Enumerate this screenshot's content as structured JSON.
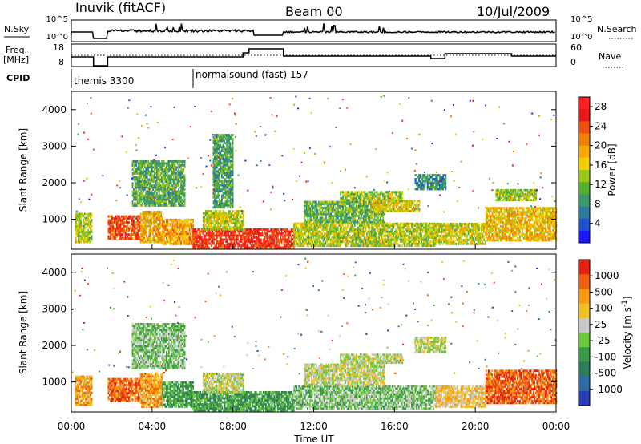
{
  "header": {
    "station": "Inuvik (fitACF)",
    "beam": "Beam 00",
    "date": "10/Jul/2009"
  },
  "noise_panel": {
    "left_label": "N.Sky",
    "right_label": "N.Search",
    "left_ticks": [
      "10^5",
      "10^0"
    ],
    "right_ticks": [
      "10^5",
      "10^0"
    ]
  },
  "freq_panel": {
    "left_label_1": "Freq.",
    "left_label_2": "[MHz]",
    "right_label": "Nave",
    "left_ticks": [
      "18",
      "8"
    ],
    "right_ticks": [
      "60",
      "0"
    ]
  },
  "cpid_panel": {
    "label": "CPID",
    "programs": [
      "themis 3300",
      "normalsound (fast) 157"
    ]
  },
  "x_axis": {
    "label": "Time UT",
    "ticks": [
      "00:00",
      "04:00",
      "08:00",
      "12:00",
      "16:00",
      "20:00",
      "00:00"
    ]
  },
  "chart_data": [
    {
      "type": "heatmap",
      "name": "power",
      "x_unit": "hours UT",
      "xlim": [
        0,
        24
      ],
      "ylabel": "Slant Range [km]",
      "ylim": [
        180,
        4500
      ],
      "yticks": [
        1000,
        2000,
        3000,
        4000
      ],
      "colorbar_label": "Power [dB]",
      "colorbar_ticks": [
        4,
        8,
        12,
        16,
        20,
        24,
        28
      ],
      "colorbar_range": [
        0,
        30
      ],
      "colors": [
        "#1a1aff",
        "#2050d0",
        "#2e7a9a",
        "#3a9a6a",
        "#55b030",
        "#9ac818",
        "#f0d000",
        "#f8a800",
        "#f08000",
        "#f05010",
        "#e81818",
        "#ff2020"
      ],
      "regions": [
        {
          "t": [
            0.2,
            1.0
          ],
          "r": [
            350,
            1150
          ],
          "v": 14
        },
        {
          "t": [
            1.8,
            3.4
          ],
          "r": [
            450,
            1100
          ],
          "v": 25
        },
        {
          "t": [
            3.4,
            4.5
          ],
          "r": [
            350,
            1200
          ],
          "v": 19
        },
        {
          "t": [
            3.0,
            5.6
          ],
          "r": [
            1350,
            2600
          ],
          "v": 10
        },
        {
          "t": [
            4.5,
            6.0
          ],
          "r": [
            300,
            1000
          ],
          "v": 20
        },
        {
          "t": [
            6.0,
            11.0
          ],
          "r": [
            200,
            700
          ],
          "v": 27
        },
        {
          "t": [
            6.5,
            8.5
          ],
          "r": [
            700,
            1200
          ],
          "v": 15
        },
        {
          "t": [
            7.0,
            8.0
          ],
          "r": [
            1300,
            3300
          ],
          "v": 9
        },
        {
          "t": [
            11.0,
            18.0
          ],
          "r": [
            250,
            900
          ],
          "v": 14
        },
        {
          "t": [
            11.5,
            15.5
          ],
          "r": [
            900,
            1500
          ],
          "v": 11
        },
        {
          "t": [
            13.3,
            16.4
          ],
          "r": [
            1500,
            1750
          ],
          "v": 13
        },
        {
          "t": [
            14.8,
            17.2
          ],
          "r": [
            1200,
            1500
          ],
          "v": 16
        },
        {
          "t": [
            17.0,
            18.5
          ],
          "r": [
            1800,
            2200
          ],
          "v": 7
        },
        {
          "t": [
            18.0,
            20.5
          ],
          "r": [
            300,
            900
          ],
          "v": 15
        },
        {
          "t": [
            20.5,
            24.0
          ],
          "r": [
            400,
            1300
          ],
          "v": 18
        },
        {
          "t": [
            21.0,
            23.0
          ],
          "r": [
            1500,
            1800
          ],
          "v": 13
        }
      ]
    },
    {
      "type": "heatmap",
      "name": "velocity",
      "x_unit": "hours UT",
      "xlim": [
        0,
        24
      ],
      "ylabel": "Slant Range [km]",
      "ylim": [
        180,
        4500
      ],
      "yticks": [
        1000,
        2000,
        3000,
        4000
      ],
      "colorbar_label": "Velocity [m s^-1]",
      "colorbar_ticks": [
        "1000",
        "500",
        "100",
        "25",
        "-25",
        "-100",
        "-500",
        "-1000"
      ],
      "colors": [
        "#2a3cb8",
        "#2e6aa8",
        "#2e7d5a",
        "#3a9a48",
        "#6ac83a",
        "#c8c8c8",
        "#f0c020",
        "#f89a10",
        "#f06010",
        "#e82010"
      ],
      "regions": [
        {
          "t": [
            0.2,
            1.0
          ],
          "r": [
            350,
            1150
          ],
          "v": 7
        },
        {
          "t": [
            1.8,
            3.4
          ],
          "r": [
            450,
            1100
          ],
          "v": 8
        },
        {
          "t": [
            3.4,
            4.5
          ],
          "r": [
            300,
            1200
          ],
          "v": 7
        },
        {
          "t": [
            3.0,
            5.6
          ],
          "r": [
            1350,
            2600
          ],
          "v": 4
        },
        {
          "t": [
            4.5,
            6.0
          ],
          "r": [
            300,
            1000
          ],
          "v": 3
        },
        {
          "t": [
            6.0,
            11.0
          ],
          "r": [
            200,
            700
          ],
          "v": 3
        },
        {
          "t": [
            6.5,
            8.5
          ],
          "r": [
            700,
            1200
          ],
          "v": 5
        },
        {
          "t": [
            11.0,
            18.0
          ],
          "r": [
            250,
            900
          ],
          "v": 4
        },
        {
          "t": [
            11.5,
            15.5
          ],
          "r": [
            900,
            1500
          ],
          "v": 5
        },
        {
          "t": [
            13.3,
            16.4
          ],
          "r": [
            1500,
            1750
          ],
          "v": 5
        },
        {
          "t": [
            17.0,
            18.5
          ],
          "r": [
            1800,
            2200
          ],
          "v": 5
        },
        {
          "t": [
            18.0,
            20.5
          ],
          "r": [
            300,
            900
          ],
          "v": 6
        },
        {
          "t": [
            20.5,
            24.0
          ],
          "r": [
            400,
            1300
          ],
          "v": 8
        }
      ]
    }
  ]
}
